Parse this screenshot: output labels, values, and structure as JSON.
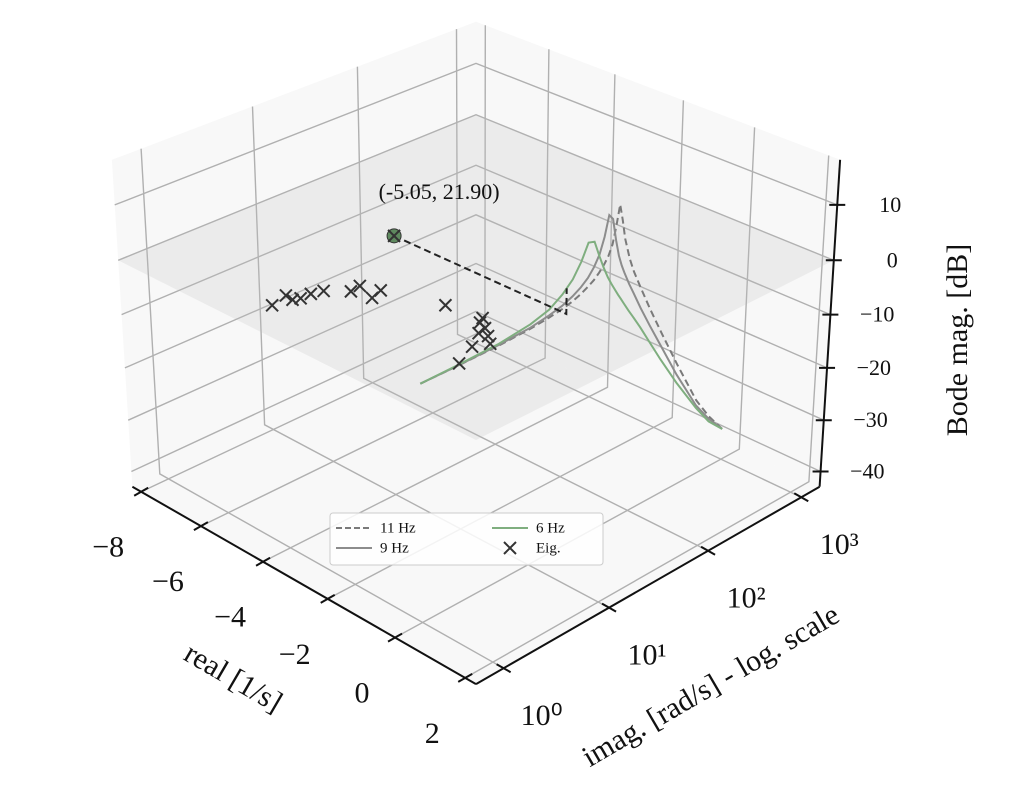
{
  "chart_data": {
    "type": "line3d",
    "xlabel": "real [1/s]",
    "ylabel": "imag. [rad/s] - log. scale",
    "zlabel": "Bode mag. [dB]",
    "xlim": [
      -8.3,
      2.3
    ],
    "xticks": [
      {
        "value": -8,
        "label": "−8"
      },
      {
        "value": -6,
        "label": "−6"
      },
      {
        "value": -4,
        "label": "−4"
      },
      {
        "value": -2,
        "label": "−2"
      },
      0,
      2
    ],
    "ylim": [
      0.56,
      1600
    ],
    "yscale": "log",
    "yticks": [
      {
        "value": 1,
        "label": "10⁰"
      },
      {
        "value": 10,
        "label": "10¹"
      },
      {
        "value": 100,
        "label": "10²"
      },
      {
        "value": 1000,
        "label": "10³"
      }
    ],
    "zlim": [
      -43,
      18
    ],
    "zticks": [
      {
        "value": -40,
        "label": "−40"
      },
      {
        "value": -30,
        "label": "−30"
      },
      {
        "value": -20,
        "label": "−20"
      },
      {
        "value": -10,
        "label": "−10"
      },
      0,
      10
    ],
    "grid": true,
    "legend": "lower center",
    "plane_z": 0,
    "curve_real": 0,
    "x": [
      1,
      2,
      5,
      10,
      15,
      20,
      25,
      30,
      35,
      40,
      45,
      50,
      55,
      60,
      65,
      70,
      75,
      80,
      90,
      100,
      120,
      150,
      200,
      300,
      500,
      700,
      1000
    ],
    "series": [
      {
        "name": "11 Hz",
        "color": "#7a7a7a",
        "dash": true,
        "values": [
          0,
          0,
          0.1,
          0.4,
          0.8,
          1.2,
          1.7,
          2.3,
          3,
          3.7,
          4.6,
          5.6,
          6.8,
          8.5,
          11.5,
          15,
          12,
          8.5,
          4.5,
          1.8,
          -2,
          -6.5,
          -12,
          -19.5,
          -28.5,
          -33,
          -37
        ]
      },
      {
        "name": "9 Hz",
        "color": "#8c8c8c",
        "dash": false,
        "values": [
          0,
          0,
          0.2,
          0.6,
          1.2,
          1.8,
          2.6,
          3.5,
          4.6,
          6,
          7.8,
          10.5,
          14,
          13,
          9,
          6,
          4,
          2.5,
          0,
          -2,
          -5.5,
          -9.5,
          -14.5,
          -21.5,
          -29.5,
          -33.5,
          -37
        ]
      },
      {
        "name": "6 Hz",
        "color": "#7fae7f",
        "dash": false,
        "values": [
          0,
          0.1,
          0.4,
          1.2,
          2.2,
          3.8,
          5.6,
          8,
          10.8,
          10.5,
          7.5,
          5,
          3,
          1.5,
          0.2,
          -1,
          -2,
          -3,
          -4.8,
          -6.3,
          -9,
          -12.5,
          -17,
          -23,
          -30,
          -34,
          -37
        ]
      }
    ],
    "eigenvalues": {
      "name": "Eig.",
      "color": "#333333",
      "real": [
        -4.49,
        -4.62,
        -4.38,
        -4.31,
        -4.31,
        -4.22,
        -3.81,
        -3.86,
        -3.29,
        -3.41,
        -2.0,
        -0.97,
        -0.67,
        -0.73,
        -0.19,
        -0.36,
        -0.05,
        -1.07,
        -0.45
      ],
      "imag": [
        1.12,
        1.62,
        1.58,
        1.78,
        2.2,
        2.7,
        3.6,
        4.5,
        3.9,
        5.1,
        7.3,
        7.1,
        5.5,
        6.6,
        4.9,
        3.8,
        2.3,
        8.1,
        5.7
      ]
    },
    "highlight": {
      "label": "(-5.05, 21.90)",
      "x": -5.05,
      "y": 21.9,
      "color": "#5f8a5f"
    }
  }
}
